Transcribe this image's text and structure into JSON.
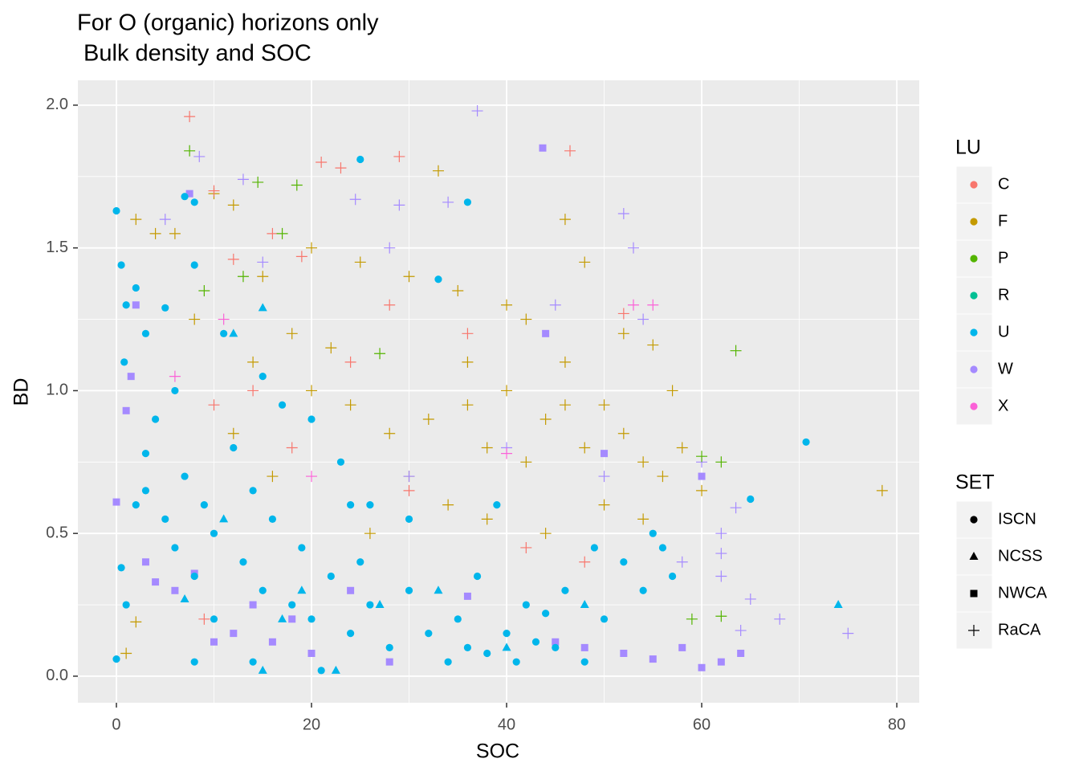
{
  "chart_data": {
    "type": "scatter",
    "title": "For O (organic) horizons only",
    "subtitle": " Bulk density and SOC",
    "x_label": "SOC",
    "y_label": "BD",
    "xlim": [
      -3.95,
      82.3
    ],
    "ylim": [
      -0.093,
      2.087
    ],
    "xticks": [
      0,
      20,
      40,
      60,
      80
    ],
    "yticks": [
      {
        "value": 0,
        "label": "0.0"
      },
      {
        "value": 0.5,
        "label": "0.5"
      },
      {
        "value": 1,
        "label": "1.0"
      },
      {
        "value": 1.5,
        "label": "1.5"
      },
      {
        "value": 2,
        "label": "2.0"
      }
    ],
    "x_minor": [
      10,
      30,
      50,
      70
    ],
    "y_minor": [
      0.25,
      0.75,
      1.25,
      1.75
    ],
    "grid": true,
    "legends": [
      {
        "title": "LU",
        "items": [
          {
            "name": "C",
            "color": "#f8766d"
          },
          {
            "name": "F",
            "color": "#c49a00"
          },
          {
            "name": "P",
            "color": "#53b400"
          },
          {
            "name": "R",
            "color": "#00c094"
          },
          {
            "name": "U",
            "color": "#00b6eb"
          },
          {
            "name": "W",
            "color": "#a58aff"
          },
          {
            "name": "X",
            "color": "#fb61d7"
          }
        ]
      },
      {
        "title": "SET",
        "items": [
          {
            "name": "ISCN",
            "shape": "circle"
          },
          {
            "name": "NCSS",
            "shape": "triangle"
          },
          {
            "name": "NWCA",
            "shape": "square"
          },
          {
            "name": "RaCA",
            "shape": "plus"
          }
        ]
      }
    ],
    "series": [
      {
        "lu": "F",
        "set": "RaCA",
        "x": [
          2,
          4,
          6,
          10,
          12,
          15,
          20,
          25,
          30,
          33,
          35,
          40,
          42,
          46,
          48,
          52,
          55,
          57,
          58,
          60,
          78.5,
          20,
          24,
          28,
          32,
          36,
          38,
          40,
          42,
          44,
          46,
          48,
          50,
          52,
          54,
          56,
          26,
          30,
          34,
          38,
          44,
          50,
          54,
          12,
          16,
          2,
          1,
          14,
          18,
          22,
          36,
          46,
          8
        ],
        "y": [
          1.6,
          1.55,
          1.55,
          1.69,
          1.65,
          1.4,
          1.5,
          1.45,
          1.4,
          1.77,
          1.35,
          1.3,
          1.25,
          1.6,
          1.45,
          1.2,
          1.16,
          1.0,
          0.8,
          0.65,
          0.65,
          1.0,
          0.95,
          0.85,
          0.9,
          0.95,
          0.8,
          1.0,
          0.75,
          0.9,
          0.95,
          0.8,
          0.95,
          0.85,
          0.75,
          0.7,
          0.5,
          0.7,
          0.6,
          0.55,
          0.5,
          0.6,
          0.55,
          0.85,
          0.7,
          0.19,
          0.08,
          1.1,
          1.2,
          1.15,
          1.1,
          1.1,
          1.25
        ]
      },
      {
        "lu": "C",
        "set": "RaCA",
        "x": [
          7.5,
          21,
          23,
          29,
          46.5,
          10,
          16,
          19,
          12,
          28,
          36,
          24,
          10,
          18,
          30,
          42,
          48,
          52,
          14,
          9
        ],
        "y": [
          1.96,
          1.8,
          1.78,
          1.82,
          1.84,
          1.7,
          1.55,
          1.47,
          1.46,
          1.3,
          1.2,
          1.1,
          0.95,
          0.8,
          0.65,
          0.45,
          0.4,
          1.27,
          1.0,
          0.2
        ]
      },
      {
        "lu": "W",
        "set": "RaCA",
        "x": [
          37,
          8.5,
          13,
          24.5,
          29,
          34,
          52,
          53,
          63.5,
          62,
          62,
          65,
          68,
          75,
          62,
          58,
          50,
          40,
          30,
          45,
          54,
          15,
          5,
          28,
          60,
          64
        ],
        "y": [
          1.98,
          1.82,
          1.74,
          1.67,
          1.65,
          1.66,
          1.62,
          1.5,
          0.59,
          0.43,
          0.35,
          0.27,
          0.2,
          0.15,
          0.5,
          0.4,
          0.7,
          0.8,
          0.7,
          1.3,
          1.25,
          1.45,
          1.6,
          1.5,
          0.75,
          0.16
        ]
      },
      {
        "lu": "P",
        "set": "RaCA",
        "x": [
          7.5,
          14.5,
          18.5,
          17,
          63.5,
          62,
          62,
          59,
          27,
          13,
          9,
          60
        ],
        "y": [
          1.84,
          1.73,
          1.72,
          1.55,
          1.14,
          0.75,
          0.21,
          0.2,
          1.13,
          1.4,
          1.35,
          0.77
        ]
      },
      {
        "lu": "X",
        "set": "RaCA",
        "x": [
          53,
          55,
          11,
          6,
          40,
          20
        ],
        "y": [
          1.3,
          1.3,
          1.25,
          1.05,
          0.78,
          0.7
        ]
      },
      {
        "lu": "W",
        "set": "NWCA",
        "x": [
          0,
          1,
          1.5,
          2,
          3,
          4,
          6,
          8,
          10,
          12,
          14,
          16,
          18,
          20,
          24,
          28,
          43.7,
          7.5,
          52,
          55,
          58,
          60,
          62,
          64,
          48,
          50,
          45,
          44,
          36,
          60
        ],
        "y": [
          0.61,
          0.93,
          1.05,
          1.3,
          0.4,
          0.33,
          0.3,
          0.36,
          0.12,
          0.15,
          0.25,
          0.12,
          0.2,
          0.08,
          0.3,
          0.05,
          1.85,
          1.69,
          0.08,
          0.06,
          0.1,
          0.7,
          0.05,
          0.08,
          0.1,
          0.78,
          0.12,
          1.2,
          0.28,
          0.03
        ]
      },
      {
        "lu": "U",
        "set": "ISCN",
        "x": [
          0,
          0.5,
          1,
          0.8,
          2,
          3,
          5,
          7,
          8,
          8,
          25,
          36,
          33,
          70.7,
          65,
          0,
          0.5,
          1,
          2,
          3,
          4,
          5,
          6,
          7,
          8,
          9,
          10,
          12,
          13,
          14,
          15,
          16,
          17,
          18,
          19,
          20,
          22,
          24,
          25,
          26,
          28,
          30,
          32,
          34,
          35,
          36,
          38,
          40,
          41,
          42,
          43,
          45,
          46,
          48,
          50,
          52,
          54,
          55,
          56,
          57,
          26,
          30,
          20,
          11,
          15,
          6,
          3,
          10,
          8,
          14,
          21,
          24,
          37,
          44,
          49,
          39,
          23
        ],
        "y": [
          1.63,
          1.44,
          1.3,
          1.1,
          1.36,
          1.2,
          1.29,
          1.68,
          1.66,
          1.44,
          1.81,
          1.66,
          1.39,
          0.82,
          0.62,
          0.06,
          0.38,
          0.25,
          0.6,
          0.78,
          0.9,
          0.55,
          0.45,
          0.7,
          0.35,
          0.6,
          0.5,
          0.8,
          0.4,
          0.65,
          0.3,
          0.55,
          0.95,
          0.25,
          0.45,
          0.2,
          0.35,
          0.15,
          0.4,
          0.25,
          0.1,
          0.3,
          0.15,
          0.05,
          0.2,
          0.1,
          0.08,
          0.15,
          0.05,
          0.25,
          0.12,
          0.1,
          0.3,
          0.05,
          0.2,
          0.4,
          0.3,
          0.5,
          0.45,
          0.35,
          0.6,
          0.55,
          0.9,
          1.2,
          1.05,
          1.0,
          0.65,
          0.2,
          0.05,
          0.05,
          0.02,
          0.6,
          0.35,
          0.22,
          0.45,
          0.6,
          0.75
        ]
      },
      {
        "lu": "U",
        "set": "NCSS",
        "x": [
          15,
          7,
          11,
          19,
          27,
          33,
          40,
          74,
          15,
          22.5,
          12,
          17,
          48
        ],
        "y": [
          1.29,
          0.27,
          0.55,
          0.3,
          0.25,
          0.3,
          0.1,
          0.25,
          0.02,
          0.02,
          1.2,
          0.2,
          0.25
        ]
      }
    ]
  }
}
